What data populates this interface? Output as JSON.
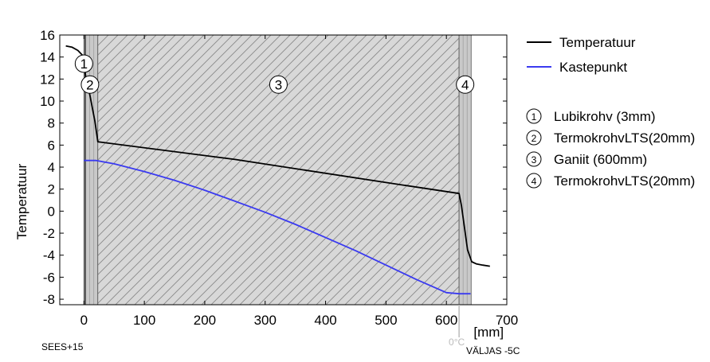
{
  "chart_data": {
    "type": "line",
    "ylabel": "Temperatuur",
    "xunit": "[mm]",
    "xlim": [
      -40,
      700
    ],
    "ylim": [
      -8.5,
      16
    ],
    "xticks": [
      0,
      100,
      200,
      300,
      400,
      500,
      600,
      700
    ],
    "yticks": [
      -8,
      -6,
      -4,
      -2,
      0,
      2,
      4,
      6,
      8,
      10,
      12,
      14,
      16
    ],
    "grid": false,
    "legend_position": "right",
    "series": [
      {
        "name": "Temperatuur",
        "color": "#000000",
        "x": [
          -30,
          -20,
          -10,
          -3,
          0,
          3,
          10,
          18,
          23,
          250,
          500,
          621,
          625,
          630,
          635,
          642,
          650,
          660,
          672
        ],
        "y": [
          15,
          14.9,
          14.6,
          14.2,
          13.4,
          12.2,
          10.5,
          8.2,
          6.3,
          4.7,
          2.6,
          1.6,
          0.5,
          -1.5,
          -3.5,
          -4.6,
          -4.8,
          -4.9,
          -5.0
        ]
      },
      {
        "name": "Kastepunkt",
        "color": "#3a3af0",
        "x": [
          0,
          10,
          20,
          50,
          100,
          150,
          200,
          250,
          300,
          350,
          400,
          450,
          500,
          550,
          600,
          621,
          640
        ],
        "y": [
          4.6,
          4.6,
          4.6,
          4.3,
          3.6,
          2.8,
          1.9,
          0.9,
          -0.1,
          -1.2,
          -2.4,
          -3.6,
          -4.9,
          -6.2,
          -7.4,
          -7.5,
          -7.5
        ]
      }
    ],
    "layers": [
      {
        "num": "1",
        "label": "Lubikrohv (3mm)",
        "x0": 0,
        "x1": 3
      },
      {
        "num": "2",
        "label": "TermokrohvLTS(20mm)",
        "x0": 3,
        "x1": 23
      },
      {
        "num": "3",
        "label": "Ganiit (600mm)",
        "x0": 23,
        "x1": 621
      },
      {
        "num": "4",
        "label": "TermokrohvLTS(20mm)",
        "x0": 621,
        "x1": 641
      }
    ],
    "annotations": {
      "inside": "SEES+15",
      "outside": "VÄLJAS -5C",
      "zero_marker": "0°C"
    },
    "colors": {
      "layer_fill": "#d8d8d8",
      "hatch": "#8a8a8a",
      "background": "#ffffff"
    }
  }
}
